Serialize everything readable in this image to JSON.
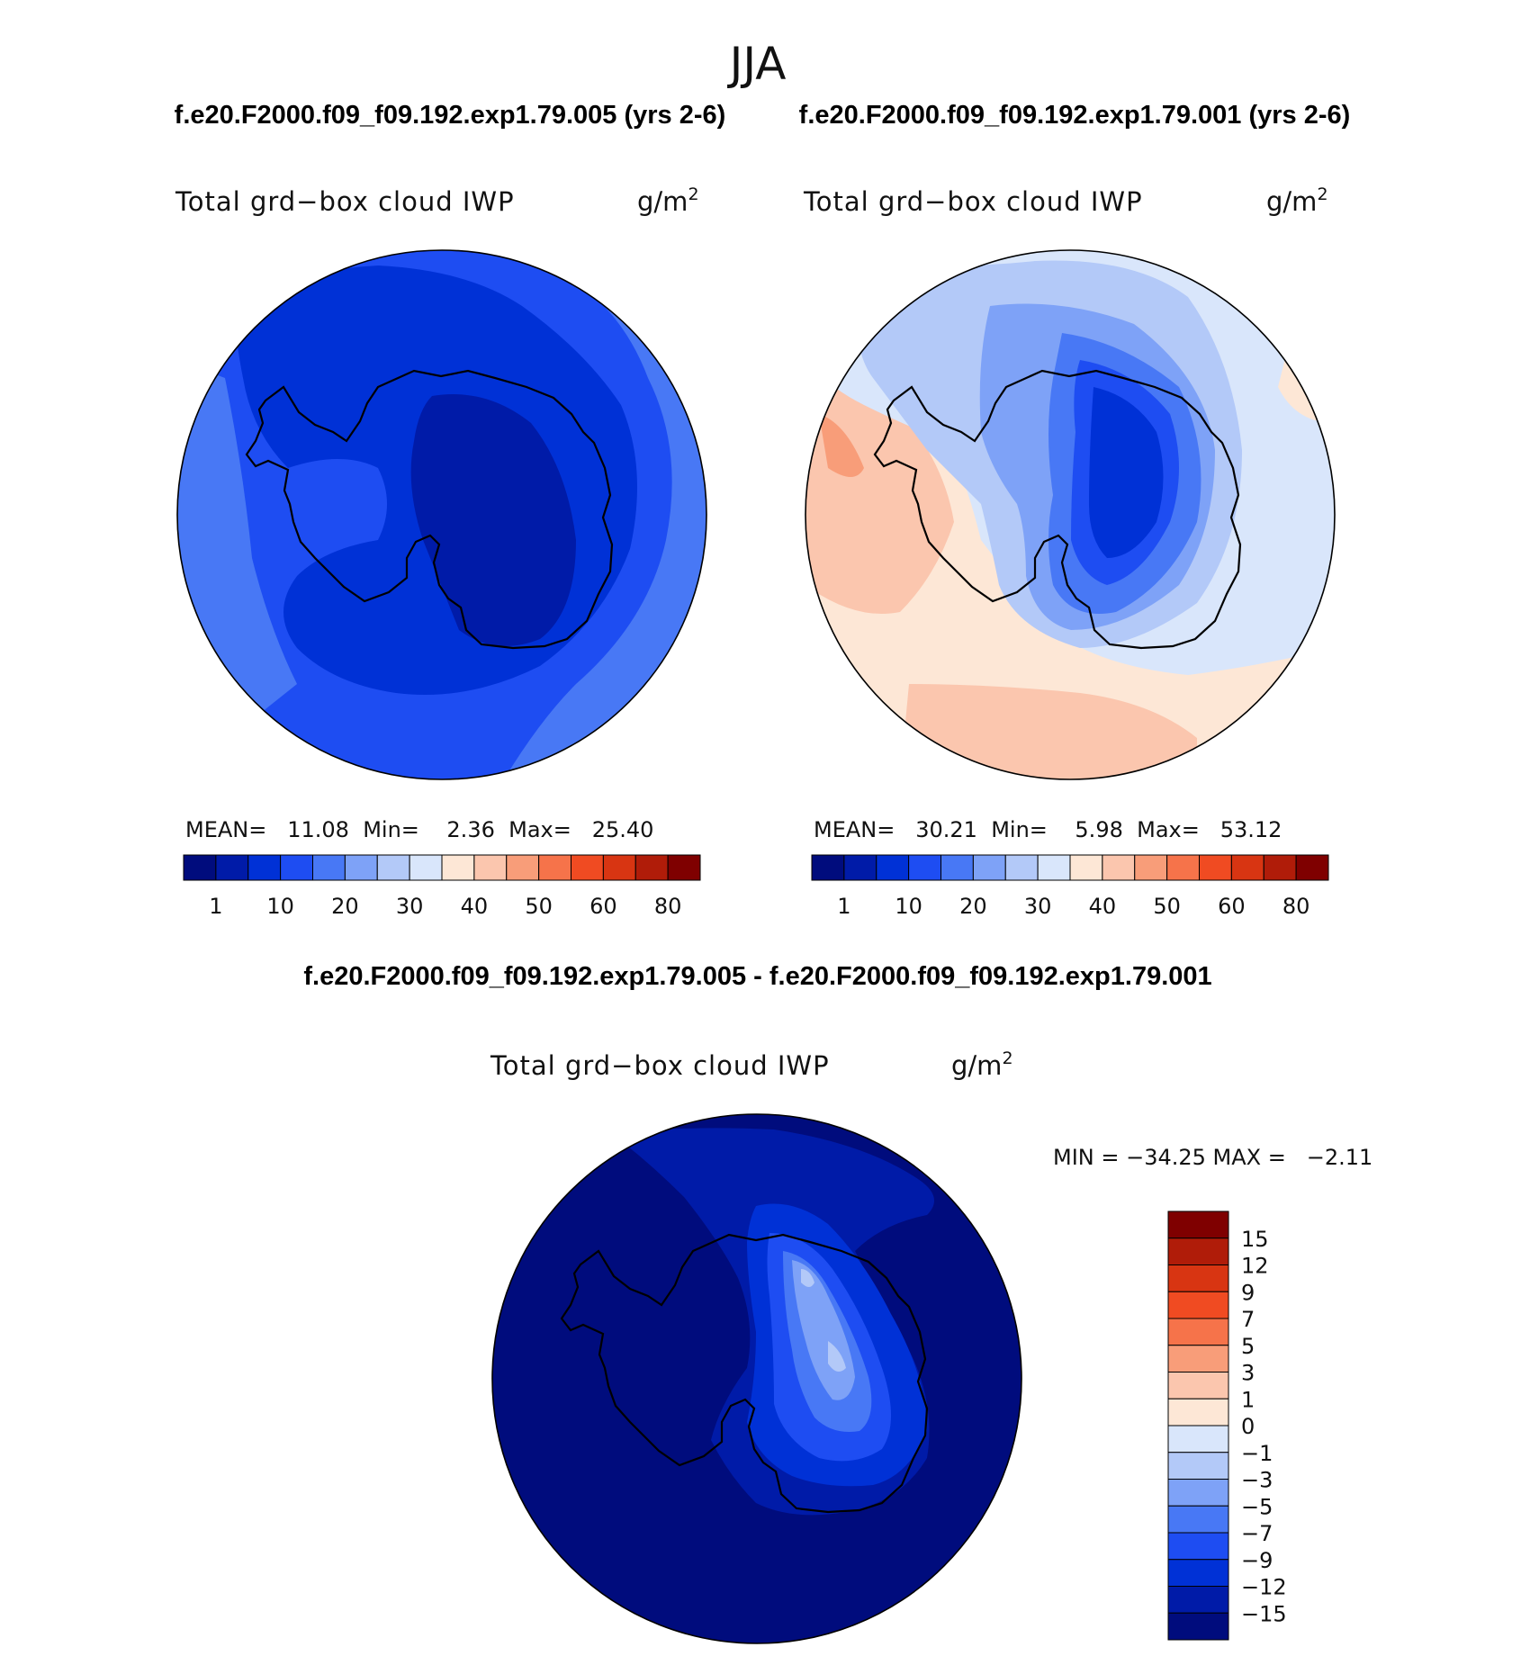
{
  "header": {
    "season": "JJA",
    "case_left_label": "f.e20.F2000.f09_f09.192.exp1.79.005 (yrs 2-6)",
    "case_right_label": "f.e20.F2000.f09_f09.192.exp1.79.001 (yrs 2-6)",
    "diff_label": "f.e20.F2000.f09_f09.192.exp1.79.005 - f.e20.F2000.f09_f09.192.exp1.79.001"
  },
  "panels": [
    {
      "id": "case1",
      "variable": "Total grd−box cloud IWP",
      "units_base": "g/m",
      "units_exp": "2",
      "stats_text": "MEAN=   11.08  Min=    2.36  Max=   25.40",
      "stats": {
        "mean": 11.08,
        "min": 2.36,
        "max": 25.4
      }
    },
    {
      "id": "case2",
      "variable": "Total grd−box cloud IWP",
      "units_base": "g/m",
      "units_exp": "2",
      "stats_text": "MEAN=   30.21  Min=    5.98  Max=   53.12",
      "stats": {
        "mean": 30.21,
        "min": 5.98,
        "max": 53.12
      }
    },
    {
      "id": "diff",
      "variable": "Total grd−box cloud IWP",
      "units_base": "g/m",
      "units_exp": "2",
      "stats_text": "MIN = −34.25 MAX =   −2.11",
      "stats": {
        "min": -34.25,
        "max": -2.11
      }
    }
  ],
  "colorbar_abs": {
    "ticks": [
      "1",
      "10",
      "20",
      "30",
      "40",
      "50",
      "60",
      "80"
    ],
    "colors": [
      "#000c7d",
      "#001ba8",
      "#0031d6",
      "#1e4df2",
      "#4878f5",
      "#7ea2f7",
      "#b3c9f8",
      "#d9e6fb",
      "#fde7d6",
      "#fbc6ae",
      "#f89d79",
      "#f6734a",
      "#f04b22",
      "#d83512",
      "#b01c09",
      "#7f0000"
    ]
  },
  "colorbar_diff": {
    "ticks": [
      "15",
      "12",
      "9",
      "7",
      "5",
      "3",
      "1",
      "0",
      "−1",
      "−3",
      "−5",
      "−7",
      "−9",
      "−12",
      "−15"
    ],
    "colors": [
      "#7f0000",
      "#b01c09",
      "#d83512",
      "#f04b22",
      "#f6734a",
      "#f89d79",
      "#fbc6ae",
      "#fde7d6",
      "#d9e6fb",
      "#b3c9f8",
      "#7ea2f7",
      "#4878f5",
      "#1e4df2",
      "#0031d6",
      "#001ba8",
      "#000c7d"
    ]
  },
  "map_colors": {
    "c_very_dark": "#000c7d",
    "c_dark": "#001ba8",
    "c_mid_dark": "#0031d6",
    "c_mid": "#1e4df2",
    "c_medium": "#4878f5",
    "c_light": "#7ea2f7",
    "c_lighter": "#b3c9f8",
    "c_palest_blue": "#d9e6fb",
    "c_pale_orange": "#fde7d6",
    "c_light_orange": "#fbc6ae",
    "c_orange": "#f89d79",
    "c_coastline": "#000000"
  }
}
